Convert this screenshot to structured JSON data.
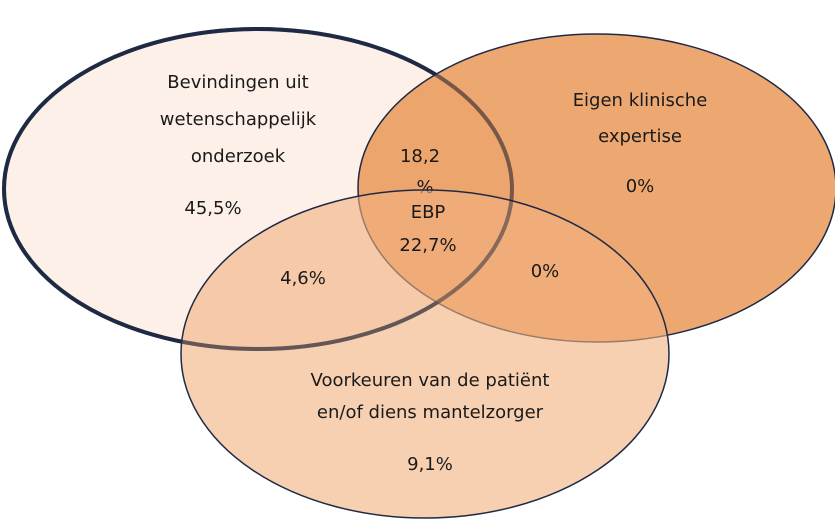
{
  "sets": [
    {
      "label": [
        "Bevindingen uit",
        "wetenschappelijk",
        "onderzoek"
      ],
      "value": "45,5%"
    },
    {
      "label": [
        "Eigen klinische",
        "expertise"
      ],
      "value": "0%"
    },
    {
      "label": [
        "Voorkeuren van de patiënt",
        "en/of diens mantelzorger"
      ],
      "value": "9,1%"
    }
  ],
  "overlaps": {
    "research_expertise": [
      "18,2",
      "%"
    ],
    "research_patient": "4,6%",
    "expertise_patient": "0%",
    "center": {
      "label": "EBP",
      "value": "22,7%"
    }
  }
}
